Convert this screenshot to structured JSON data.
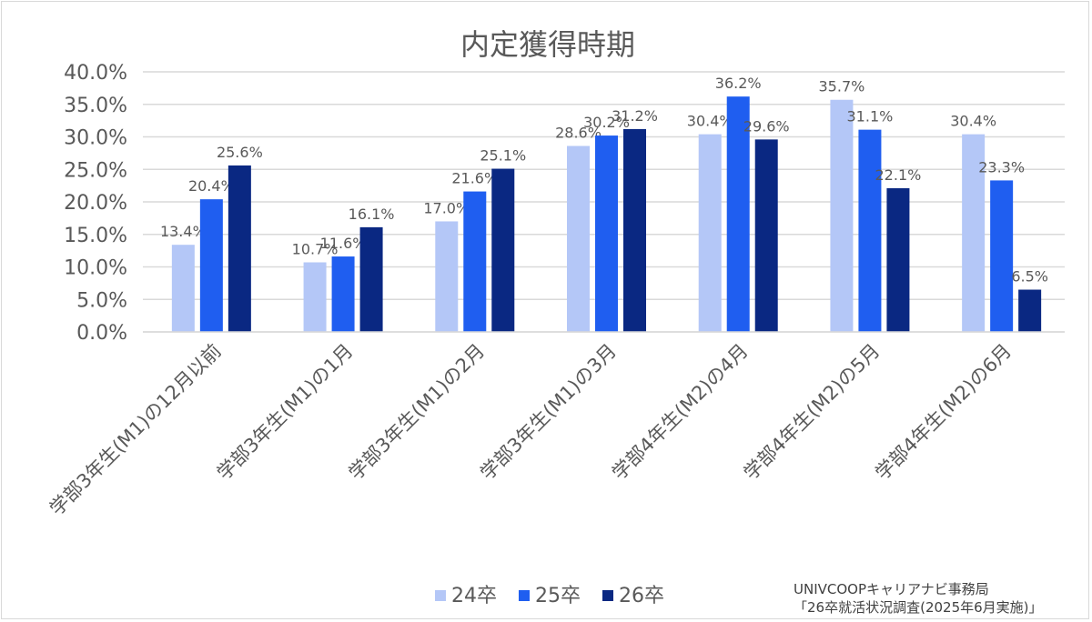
{
  "chart_data": {
    "type": "bar",
    "title": "内定獲得時期",
    "categories": [
      "学部3年生(M1)の12月以前",
      "学部3年生(M1)の1月",
      "学部3年生(M1)の2月",
      "学部3年生(M1)の3月",
      "学部4年生(M2)の4月",
      "学部4年生(M2)の5月",
      "学部4年生(M2)の6月"
    ],
    "series": [
      {
        "name": "24卒",
        "color": "#b4c7f7",
        "values": [
          13.4,
          10.7,
          17.0,
          28.6,
          30.4,
          35.7,
          30.4
        ]
      },
      {
        "name": "25卒",
        "color": "#1f5ef0",
        "values": [
          20.4,
          11.6,
          21.6,
          30.2,
          36.2,
          31.1,
          23.3
        ]
      },
      {
        "name": "26卒",
        "color": "#0a2882",
        "values": [
          25.6,
          16.1,
          25.1,
          31.2,
          29.6,
          22.1,
          6.5
        ]
      }
    ],
    "ylim": [
      0,
      40
    ],
    "yticks": [
      0,
      5,
      10,
      15,
      20,
      25,
      30,
      35,
      40
    ],
    "grid": true,
    "legend": "bottom"
  },
  "source": {
    "line1": "UNIVCOOPキャリアナビ事務局",
    "line2": "「26卒就活状況調査(2025年6月実施)」"
  }
}
